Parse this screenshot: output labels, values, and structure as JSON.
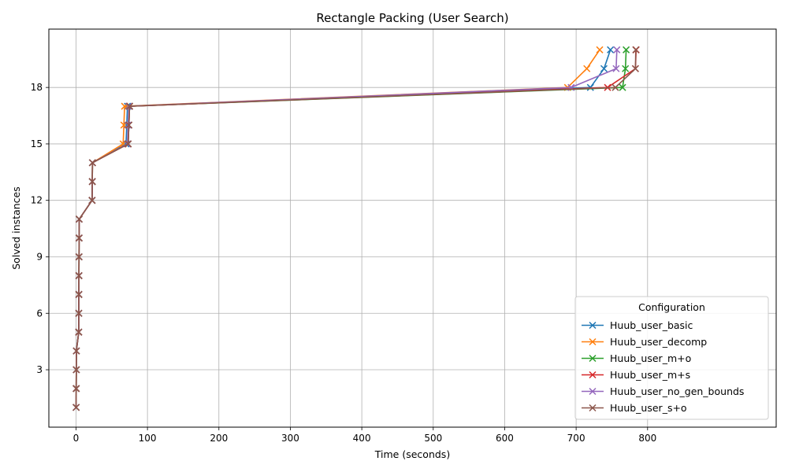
{
  "chart_data": {
    "type": "line",
    "title": "Rectangle Packing (User Search)",
    "xlabel": "Time (seconds)",
    "ylabel": "Solved instances",
    "xlim": [
      -38,
      980
    ],
    "ylim": [
      -0.05,
      21.1
    ],
    "xticks": [
      0,
      100,
      200,
      300,
      400,
      500,
      600,
      700,
      800
    ],
    "yticks": [
      3,
      6,
      9,
      12,
      15,
      18
    ],
    "grid": true,
    "marker": "x",
    "legend": {
      "title": "Configuration",
      "position": "lower-right"
    },
    "series": [
      {
        "name": "Huub_user_basic",
        "color": "#1f77b4",
        "points": [
          [
            0.2,
            1
          ],
          [
            0.3,
            2
          ],
          [
            0.4,
            3
          ],
          [
            0.5,
            4
          ],
          [
            3.8,
            5
          ],
          [
            3.9,
            6
          ],
          [
            4.0,
            7
          ],
          [
            4.1,
            8
          ],
          [
            4.2,
            9
          ],
          [
            4.3,
            10
          ],
          [
            4.4,
            11
          ],
          [
            22.5,
            12
          ],
          [
            22.8,
            13
          ],
          [
            23.0,
            14
          ],
          [
            70,
            15
          ],
          [
            71,
            16
          ],
          [
            72,
            17
          ],
          [
            720,
            18
          ],
          [
            739,
            19
          ],
          [
            748,
            20
          ]
        ]
      },
      {
        "name": "Huub_user_decomp",
        "color": "#ff7f0e",
        "points": [
          [
            0.2,
            1
          ],
          [
            0.3,
            2
          ],
          [
            0.4,
            3
          ],
          [
            0.5,
            4
          ],
          [
            3.8,
            5
          ],
          [
            3.9,
            6
          ],
          [
            4.0,
            7
          ],
          [
            4.1,
            8
          ],
          [
            4.2,
            9
          ],
          [
            4.3,
            10
          ],
          [
            4.4,
            11
          ],
          [
            22.5,
            12
          ],
          [
            22.8,
            13
          ],
          [
            23.0,
            14
          ],
          [
            66,
            15
          ],
          [
            67,
            16
          ],
          [
            68,
            17
          ],
          [
            688,
            18
          ],
          [
            715,
            19
          ],
          [
            733,
            20
          ]
        ]
      },
      {
        "name": "Huub_user_m+o",
        "color": "#2ca02c",
        "points": [
          [
            0.2,
            1
          ],
          [
            0.3,
            2
          ],
          [
            0.4,
            3
          ],
          [
            0.5,
            4
          ],
          [
            3.8,
            5
          ],
          [
            3.9,
            6
          ],
          [
            4.0,
            7
          ],
          [
            4.1,
            8
          ],
          [
            4.2,
            9
          ],
          [
            4.3,
            10
          ],
          [
            4.4,
            11
          ],
          [
            22.5,
            12
          ],
          [
            22.8,
            13
          ],
          [
            23.0,
            14
          ],
          [
            73,
            15
          ],
          [
            74,
            16
          ],
          [
            75,
            17
          ],
          [
            765,
            18
          ],
          [
            769,
            19
          ],
          [
            770,
            20
          ]
        ]
      },
      {
        "name": "Huub_user_m+s",
        "color": "#d62728",
        "points": [
          [
            0.2,
            1
          ],
          [
            0.3,
            2
          ],
          [
            0.4,
            3
          ],
          [
            0.5,
            4
          ],
          [
            3.8,
            5
          ],
          [
            3.9,
            6
          ],
          [
            4.0,
            7
          ],
          [
            4.1,
            8
          ],
          [
            4.2,
            9
          ],
          [
            4.3,
            10
          ],
          [
            4.4,
            11
          ],
          [
            22.5,
            12
          ],
          [
            22.8,
            13
          ],
          [
            23.0,
            14
          ],
          [
            73,
            15
          ],
          [
            74,
            16
          ],
          [
            75,
            17
          ],
          [
            744,
            18
          ],
          [
            783,
            19
          ],
          [
            784,
            20
          ]
        ]
      },
      {
        "name": "Huub_user_no_gen_bounds",
        "color": "#9467bd",
        "points": [
          [
            0.2,
            1
          ],
          [
            0.3,
            2
          ],
          [
            0.4,
            3
          ],
          [
            0.5,
            4
          ],
          [
            3.8,
            5
          ],
          [
            3.9,
            6
          ],
          [
            4.0,
            7
          ],
          [
            4.1,
            8
          ],
          [
            4.2,
            9
          ],
          [
            4.3,
            10
          ],
          [
            4.4,
            11
          ],
          [
            22.5,
            12
          ],
          [
            22.8,
            13
          ],
          [
            23.0,
            14
          ],
          [
            72,
            15
          ],
          [
            73,
            16
          ],
          [
            74,
            17
          ],
          [
            693,
            18
          ],
          [
            756,
            19
          ],
          [
            757,
            20
          ]
        ]
      },
      {
        "name": "Huub_user_s+o",
        "color": "#8c564b",
        "points": [
          [
            0.2,
            1
          ],
          [
            0.3,
            2
          ],
          [
            0.4,
            3
          ],
          [
            0.5,
            4
          ],
          [
            3.8,
            5
          ],
          [
            3.9,
            6
          ],
          [
            4.0,
            7
          ],
          [
            4.1,
            8
          ],
          [
            4.2,
            9
          ],
          [
            4.3,
            10
          ],
          [
            4.4,
            11
          ],
          [
            22.5,
            12
          ],
          [
            22.8,
            13
          ],
          [
            23.0,
            14
          ],
          [
            73,
            15
          ],
          [
            74,
            16
          ],
          [
            75,
            17
          ],
          [
            755,
            18
          ],
          [
            783,
            19
          ],
          [
            783.5,
            20
          ]
        ]
      }
    ]
  }
}
